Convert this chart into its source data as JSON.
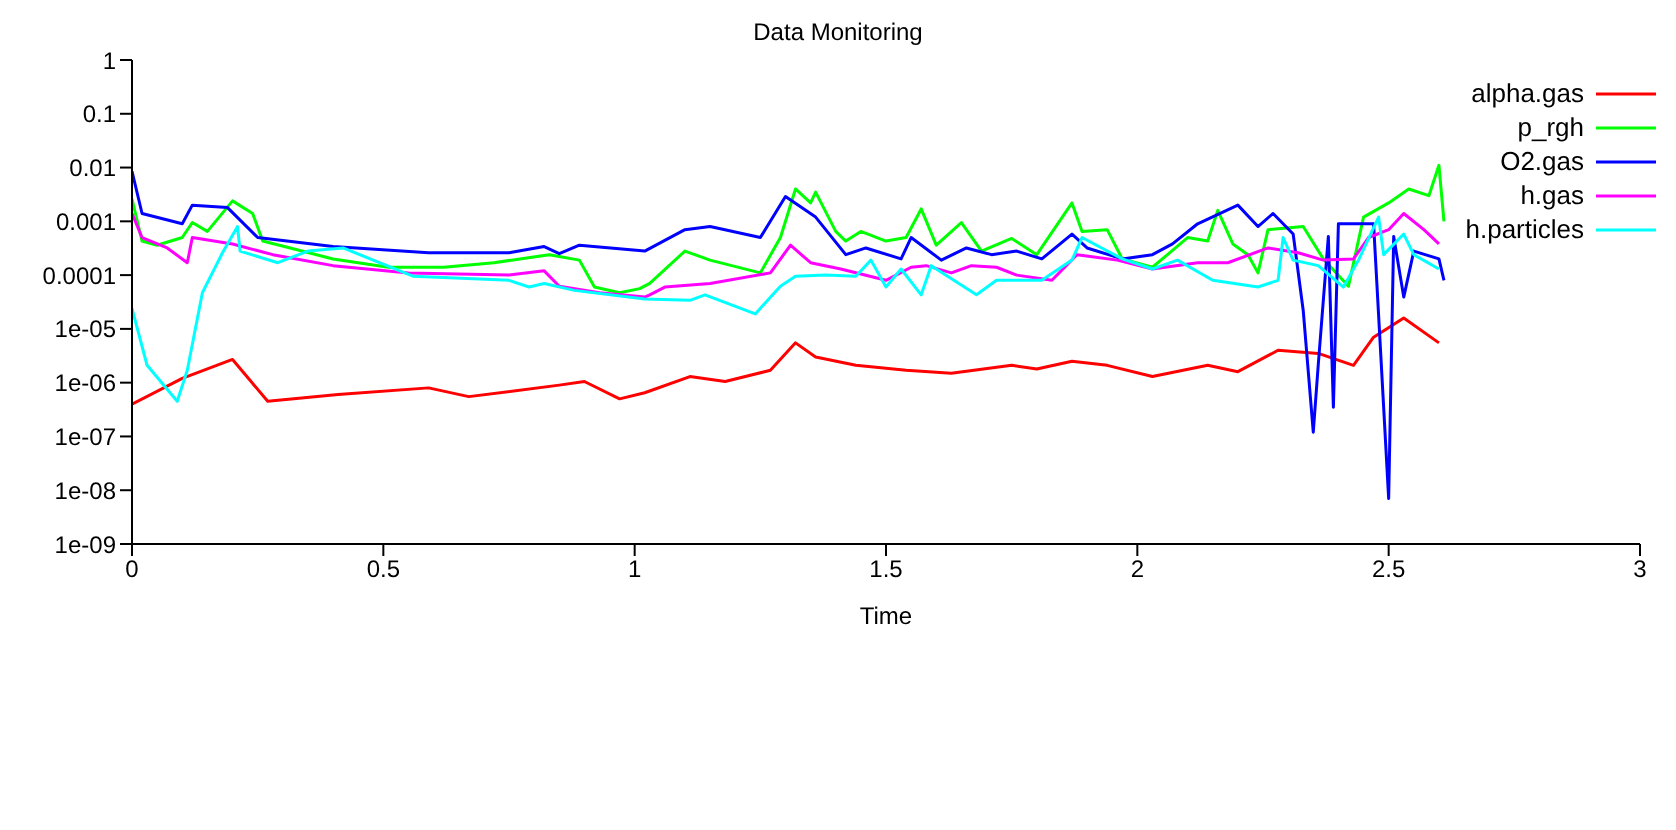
{
  "chart_data": {
    "type": "line",
    "title": "Data Monitoring",
    "xlabel": "Time",
    "log": "y",
    "xlim": [
      0,
      3
    ],
    "xticks": [
      0,
      0.5,
      1,
      1.5,
      2,
      2.5,
      3
    ],
    "ylim": [
      1e-09,
      1
    ],
    "yticks": [
      1,
      0.1,
      0.01,
      0.001,
      0.0001,
      {
        "value": 1e-05,
        "label": "1e-05"
      },
      {
        "value": 1e-06,
        "label": "1e-06"
      },
      {
        "value": 1e-07,
        "label": "1e-07"
      },
      {
        "value": 1e-08,
        "label": "1e-08"
      },
      {
        "value": 1e-09,
        "label": "1e-09"
      }
    ],
    "grid": false,
    "legend": "top right",
    "marker": "none",
    "line_style": "solid",
    "series": [
      {
        "name": "alpha.gas",
        "color": "#ff0000",
        "x": [
          0,
          0.1,
          0.2,
          0.27,
          0.41,
          0.59,
          0.67,
          0.85,
          0.9,
          0.97,
          1.02,
          1.11,
          1.18,
          1.27,
          1.32,
          1.36,
          1.44,
          1.54,
          1.63,
          1.75,
          1.8,
          1.87,
          1.94,
          2.03,
          2.14,
          2.2,
          2.28,
          2.36,
          2.43,
          2.47,
          2.53,
          2.6
        ],
        "values": [
          4e-07,
          1.2e-06,
          2.7e-06,
          4.5e-07,
          6e-07,
          8e-07,
          5.5e-07,
          9e-07,
          1.05e-06,
          5e-07,
          6.5e-07,
          1.3e-06,
          1.05e-06,
          1.7e-06,
          5.5e-06,
          3e-06,
          2.1e-06,
          1.7e-06,
          1.5e-06,
          2.1e-06,
          1.8e-06,
          2.5e-06,
          2.1e-06,
          1.3e-06,
          2.1e-06,
          1.6e-06,
          4e-06,
          3.5e-06,
          2.1e-06,
          7e-06,
          1.6e-05,
          5.5e-06
        ]
      },
      {
        "name": "p_rgh",
        "color": "#00ff00",
        "x": [
          0,
          0.02,
          0.05,
          0.1,
          0.12,
          0.15,
          0.2,
          0.24,
          0.26,
          0.4,
          0.51,
          0.62,
          0.72,
          0.83,
          0.89,
          0.92,
          0.97,
          1.01,
          1.03,
          1.1,
          1.15,
          1.25,
          1.29,
          1.32,
          1.35,
          1.36,
          1.4,
          1.42,
          1.45,
          1.5,
          1.54,
          1.57,
          1.6,
          1.65,
          1.69,
          1.75,
          1.8,
          1.87,
          1.89,
          1.94,
          1.97,
          2.03,
          2.06,
          2.1,
          2.14,
          2.16,
          2.19,
          2.22,
          2.24,
          2.26,
          2.33,
          2.37,
          2.42,
          2.45,
          2.5,
          2.54,
          2.58,
          2.6,
          2.61
        ],
        "values": [
          0.0026,
          0.00043,
          0.00036,
          0.0005,
          0.00095,
          0.00065,
          0.0024,
          0.0014,
          0.00043,
          0.0002,
          0.00014,
          0.00014,
          0.00017,
          0.00024,
          0.00019,
          6e-05,
          4.7e-05,
          5.6e-05,
          7e-05,
          0.00028,
          0.00019,
          0.00011,
          0.0005,
          0.004,
          0.0022,
          0.0035,
          0.00065,
          0.00043,
          0.00065,
          0.00043,
          0.0005,
          0.0017,
          0.00036,
          0.00095,
          0.00028,
          0.00048,
          0.00024,
          0.0022,
          0.00065,
          0.0007,
          0.0002,
          0.00014,
          0.00024,
          0.0005,
          0.00043,
          0.0016,
          0.00038,
          0.00024,
          0.00011,
          0.0007,
          0.0008,
          0.0002,
          6.2e-05,
          0.0012,
          0.0022,
          0.004,
          0.003,
          0.011,
          0.001
        ]
      },
      {
        "name": "O2.gas",
        "color": "#0000ff",
        "x": [
          0,
          0.02,
          0.1,
          0.12,
          0.19,
          0.25,
          0.4,
          0.59,
          0.75,
          0.82,
          0.85,
          0.89,
          1.02,
          1.1,
          1.15,
          1.25,
          1.3,
          1.36,
          1.42,
          1.46,
          1.53,
          1.55,
          1.61,
          1.66,
          1.71,
          1.76,
          1.81,
          1.87,
          1.9,
          1.97,
          2.03,
          2.07,
          2.12,
          2.2,
          2.24,
          2.27,
          2.31,
          2.33,
          2.35,
          2.36,
          2.38,
          2.39,
          2.4,
          2.47,
          2.5,
          2.51,
          2.53,
          2.55,
          2.6,
          2.61
        ],
        "values": [
          0.0085,
          0.0014,
          0.0009,
          0.002,
          0.0018,
          0.0005,
          0.00034,
          0.00026,
          0.00026,
          0.00034,
          0.00025,
          0.00036,
          0.00028,
          0.0007,
          0.0008,
          0.0005,
          0.0029,
          0.0012,
          0.00024,
          0.00032,
          0.0002,
          0.0005,
          0.00019,
          0.00032,
          0.00024,
          0.00028,
          0.0002,
          0.00058,
          0.00032,
          0.0002,
          0.00024,
          0.00038,
          0.0009,
          0.002,
          0.0008,
          0.0014,
          0.00058,
          2.2e-05,
          1.2e-07,
          2.2e-06,
          0.00052,
          3.5e-07,
          0.0009,
          0.0009,
          7e-09,
          0.00052,
          3.9e-05,
          0.00028,
          0.0002,
          8e-05
        ]
      },
      {
        "name": "h.gas",
        "color": "#ff00ff",
        "x": [
          0,
          0.02,
          0.07,
          0.11,
          0.12,
          0.2,
          0.28,
          0.4,
          0.55,
          0.75,
          0.82,
          0.85,
          0.93,
          1.02,
          1.03,
          1.06,
          1.15,
          1.27,
          1.31,
          1.35,
          1.41,
          1.5,
          1.55,
          1.58,
          1.63,
          1.67,
          1.72,
          1.76,
          1.83,
          1.88,
          1.96,
          2.03,
          2.12,
          2.18,
          2.26,
          2.32,
          2.37,
          2.43,
          2.46,
          2.5,
          2.53,
          2.57,
          2.6
        ],
        "values": [
          0.0014,
          0.0005,
          0.00032,
          0.00017,
          0.0005,
          0.00038,
          0.00024,
          0.00015,
          0.00011,
          0.0001,
          0.00012,
          6.2e-05,
          4.7e-05,
          3.9e-05,
          4.3e-05,
          6e-05,
          7e-05,
          0.00011,
          0.00036,
          0.00017,
          0.00013,
          8e-05,
          0.00014,
          0.00015,
          0.00011,
          0.00015,
          0.00014,
          0.0001,
          8e-05,
          0.00024,
          0.00019,
          0.00013,
          0.00017,
          0.00017,
          0.00032,
          0.00026,
          0.00019,
          0.0002,
          0.0005,
          0.0007,
          0.0014,
          0.0007,
          0.00038
        ]
      },
      {
        "name": "h.particles",
        "color": "#00ffff",
        "x": [
          0,
          0.03,
          0.09,
          0.11,
          0.14,
          0.18,
          0.21,
          0.215,
          0.29,
          0.35,
          0.42,
          0.56,
          0.75,
          0.79,
          0.82,
          0.88,
          1.02,
          1.11,
          1.14,
          1.24,
          1.29,
          1.32,
          1.38,
          1.44,
          1.47,
          1.5,
          1.53,
          1.57,
          1.59,
          1.68,
          1.72,
          1.81,
          1.87,
          1.89,
          1.97,
          2.03,
          2.08,
          2.15,
          2.24,
          2.28,
          2.29,
          2.31,
          2.36,
          2.41,
          2.44,
          2.48,
          2.49,
          2.53,
          2.55,
          2.6
        ],
        "values": [
          2.4e-05,
          2.1e-06,
          4.5e-07,
          1.7e-06,
          4.7e-05,
          0.00026,
          0.0008,
          0.00028,
          0.00017,
          0.00028,
          0.00032,
          9.5e-05,
          8e-05,
          6e-05,
          7e-05,
          5.2e-05,
          3.6e-05,
          3.4e-05,
          4.3e-05,
          1.9e-05,
          6.2e-05,
          9.5e-05,
          0.0001,
          9.5e-05,
          0.00019,
          6e-05,
          0.00013,
          4.3e-05,
          0.00015,
          4.3e-05,
          8e-05,
          8e-05,
          0.00019,
          0.0005,
          0.0002,
          0.00013,
          0.00019,
          8e-05,
          6e-05,
          8e-05,
          0.0005,
          0.00019,
          0.00015,
          6e-05,
          0.00019,
          0.0012,
          0.00024,
          0.00058,
          0.00024,
          0.00013
        ]
      }
    ]
  }
}
